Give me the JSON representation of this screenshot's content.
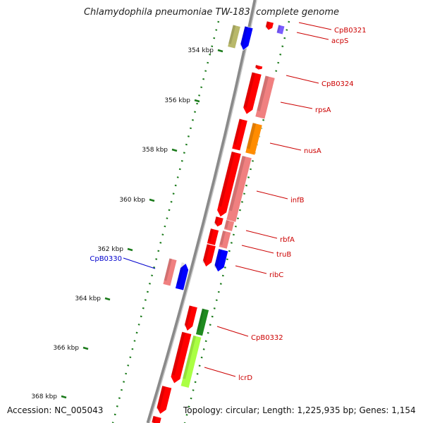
{
  "title": "Chlamydophila pneumoniae TW-183, complete genome",
  "footer": {
    "accession": "Accession: NC_005043",
    "stats": "Topology: circular; Length: 1,225,935 bp; Genes: 1,154"
  },
  "colors": {
    "backbone": "#8a8a8a",
    "tick": "#1a7a1a",
    "label_red": "#cc0000",
    "label_blue": "#0000cc",
    "red": "#ff0000",
    "pink": "#f08080",
    "orange": "#ff8c00",
    "blue": "#0000ff",
    "olive": "#b8b86a",
    "green": "#1f8a1f",
    "lime": "#aaff44",
    "violet": "#7a5cff"
  },
  "scale_labels": [
    "354 kbp",
    "356 kbp",
    "358 kbp",
    "360 kbp",
    "362 kbp",
    "364 kbp",
    "366 kbp",
    "368 kbp"
  ],
  "gene_labels": [
    {
      "text": "CpB0321",
      "color": "red"
    },
    {
      "text": "acpS",
      "color": "red"
    },
    {
      "text": "CpB0324",
      "color": "red"
    },
    {
      "text": "rpsA",
      "color": "red"
    },
    {
      "text": "nusA",
      "color": "red"
    },
    {
      "text": "infB",
      "color": "red"
    },
    {
      "text": "rbfA",
      "color": "red"
    },
    {
      "text": "truB",
      "color": "red"
    },
    {
      "text": "ribC",
      "color": "red"
    },
    {
      "text": "CpB0330",
      "color": "blue"
    },
    {
      "text": "CpB0332",
      "color": "red"
    },
    {
      "text": "lcrD",
      "color": "red"
    }
  ]
}
